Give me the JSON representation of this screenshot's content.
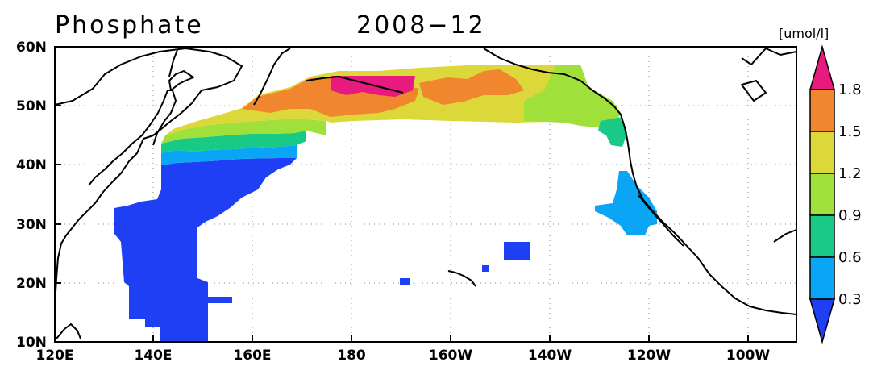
{
  "title": "Phosphate",
  "date": "2008−12",
  "units": "[umol/l]",
  "lat_labels": [
    "60N",
    "50N",
    "40N",
    "30N",
    "20N",
    "10N"
  ],
  "lon_labels": [
    "120E",
    "140E",
    "160E",
    "180",
    "160W",
    "140W",
    "120W",
    "100W"
  ],
  "colorbar": {
    "levels": [
      "1.8",
      "1.5",
      "1.2",
      "0.9",
      "0.6",
      "0.3"
    ],
    "colors": [
      "#e8197f",
      "#f0862d",
      "#dcd83a",
      "#9fe03a",
      "#19c986",
      "#0aa6f5",
      "#1f3ff5"
    ]
  },
  "map_extent": {
    "lon_min": 120,
    "lon_max": 270,
    "lat_min": 10,
    "lat_max": 60
  }
}
